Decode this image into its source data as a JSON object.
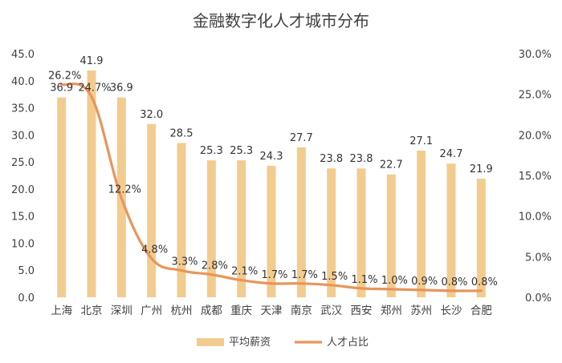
{
  "chart_data": {
    "type": "bar",
    "title": "金融数字化人才城市分布",
    "categories": [
      "上海",
      "北京",
      "深圳",
      "广州",
      "杭州",
      "成都",
      "重庆",
      "天津",
      "南京",
      "武汉",
      "西安",
      "郑州",
      "苏州",
      "长沙",
      "合肥"
    ],
    "series": [
      {
        "name": "平均薪资",
        "type": "bar",
        "axis": "left",
        "values": [
          36.9,
          41.9,
          36.9,
          32.0,
          28.5,
          25.3,
          25.3,
          24.3,
          27.7,
          23.8,
          23.8,
          22.7,
          27.1,
          24.7,
          21.9
        ],
        "labels": [
          "36.9",
          "41.9",
          "36.9",
          "32.0",
          "28.5",
          "25.3",
          "25.3",
          "24.3",
          "27.7",
          "23.8",
          "23.8",
          "22.7",
          "27.1",
          "24.7",
          "21.9"
        ],
        "color": "#F2CC8F"
      },
      {
        "name": "人才占比",
        "type": "line",
        "axis": "right",
        "values": [
          26.2,
          24.7,
          12.2,
          4.8,
          3.3,
          2.8,
          2.1,
          1.7,
          1.7,
          1.5,
          1.1,
          1.0,
          0.9,
          0.8,
          0.8
        ],
        "labels": [
          "26.2%",
          "24.7%",
          "12.2%",
          "4.8%",
          "3.3%",
          "2.8%",
          "2.1%",
          "1.7%",
          "1.7%",
          "1.5%",
          "1.1%",
          "1.0%",
          "0.9%",
          "0.8%",
          "0.8%"
        ],
        "color": "#E8955A"
      }
    ],
    "y_left": {
      "min": 0,
      "max": 45,
      "step": 5,
      "ticks": [
        "0.0",
        "5.0",
        "10.0",
        "15.0",
        "20.0",
        "25.0",
        "30.0",
        "35.0",
        "40.0",
        "45.0"
      ]
    },
    "y_right": {
      "min": 0,
      "max": 30,
      "step": 5,
      "ticks": [
        "0.0%",
        "5.0%",
        "10.0%",
        "15.0%",
        "20.0%",
        "25.0%",
        "30.0%"
      ]
    },
    "grid": false,
    "legend": "bottom"
  }
}
